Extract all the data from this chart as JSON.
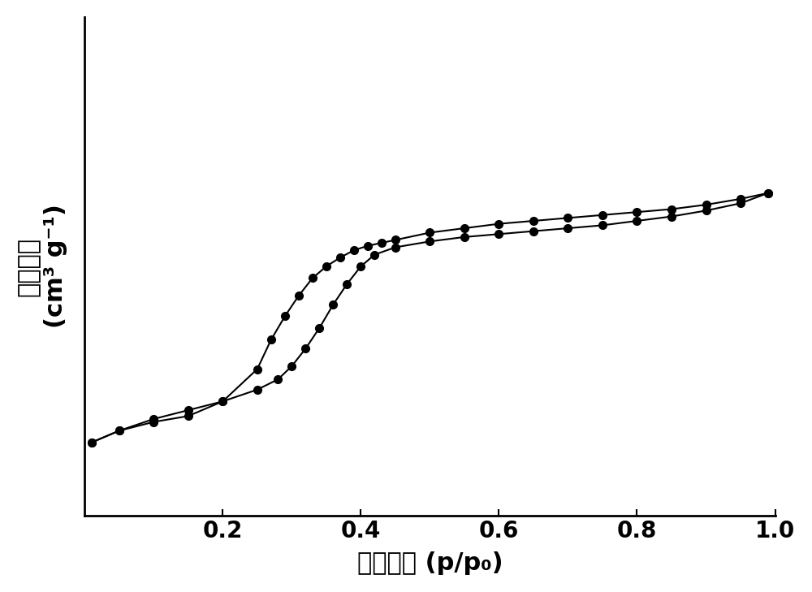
{
  "adsorption_x": [
    0.01,
    0.05,
    0.1,
    0.15,
    0.2,
    0.25,
    0.28,
    0.3,
    0.32,
    0.34,
    0.36,
    0.38,
    0.4,
    0.42,
    0.45,
    0.5,
    0.55,
    0.6,
    0.65,
    0.7,
    0.75,
    0.8,
    0.85,
    0.9,
    0.95,
    0.99
  ],
  "adsorption_y": [
    50,
    58,
    66,
    72,
    78,
    86,
    93,
    102,
    114,
    128,
    144,
    158,
    170,
    178,
    183,
    187,
    190,
    192,
    194,
    196,
    198,
    201,
    204,
    208,
    213,
    220
  ],
  "desorption_x": [
    0.99,
    0.95,
    0.9,
    0.85,
    0.8,
    0.75,
    0.7,
    0.65,
    0.6,
    0.55,
    0.5,
    0.45,
    0.43,
    0.41,
    0.39,
    0.37,
    0.35,
    0.33,
    0.31,
    0.29,
    0.27,
    0.25,
    0.2,
    0.15,
    0.1,
    0.05,
    0.01
  ],
  "desorption_y": [
    220,
    216,
    212,
    209,
    207,
    205,
    203,
    201,
    199,
    196,
    193,
    188,
    186,
    184,
    181,
    176,
    170,
    162,
    150,
    136,
    120,
    100,
    78,
    68,
    64,
    58,
    50
  ],
  "xlim": [
    0.0,
    1.0
  ],
  "ylim_min": 0,
  "ylim_max": 340,
  "line_color": "#000000",
  "marker": "o",
  "marker_size": 7,
  "line_width": 1.5,
  "fig_bg_color": "#ffffff",
  "plot_bg_color": "#ffffff",
  "xlabel_text": "相对压力 (p/p₀)",
  "ylabel_line1": "吸收体积",
  "ylabel_line2": "(cm³ g⁻¹)",
  "xlabel_fontsize": 22,
  "ylabel_fontsize": 22,
  "tick_fontsize": 20,
  "xticks": [
    0.2,
    0.4,
    0.6,
    0.8,
    1.0
  ],
  "xtick_labels": [
    "0.2",
    "0.4",
    "0.6",
    "0.8",
    "1.0"
  ],
  "grid_color": "#cccccc",
  "grid_linestyle": "--",
  "grid_linewidth": 0.5,
  "spine_linewidth": 2.0
}
